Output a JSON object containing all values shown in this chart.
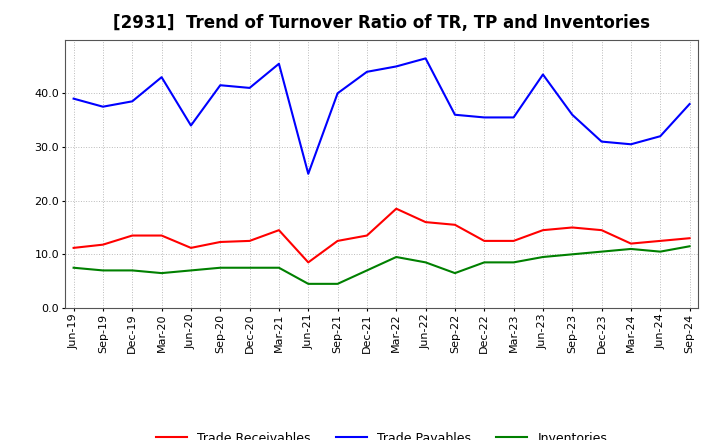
{
  "title": "[2931]  Trend of Turnover Ratio of TR, TP and Inventories",
  "labels": [
    "Jun-19",
    "Sep-19",
    "Dec-19",
    "Mar-20",
    "Jun-20",
    "Sep-20",
    "Dec-20",
    "Mar-21",
    "Jun-21",
    "Sep-21",
    "Dec-21",
    "Mar-22",
    "Jun-22",
    "Sep-22",
    "Dec-22",
    "Mar-23",
    "Jun-23",
    "Sep-23",
    "Dec-23",
    "Mar-24",
    "Jun-24",
    "Sep-24"
  ],
  "trade_receivables": [
    11.2,
    11.8,
    13.5,
    13.5,
    11.2,
    12.3,
    12.5,
    14.5,
    8.5,
    12.5,
    13.5,
    18.5,
    16.0,
    15.5,
    12.5,
    12.5,
    14.5,
    15.0,
    14.5,
    12.0,
    12.5,
    13.0
  ],
  "trade_payables": [
    39.0,
    37.5,
    38.5,
    43.0,
    34.0,
    41.5,
    41.0,
    45.5,
    25.0,
    40.0,
    44.0,
    45.0,
    46.5,
    36.0,
    35.5,
    35.5,
    43.5,
    36.0,
    31.0,
    30.5,
    32.0,
    38.0
  ],
  "inventories": [
    7.5,
    7.0,
    7.0,
    6.5,
    7.0,
    7.5,
    7.5,
    7.5,
    4.5,
    4.5,
    7.0,
    9.5,
    8.5,
    6.5,
    8.5,
    8.5,
    9.5,
    10.0,
    10.5,
    11.0,
    10.5,
    11.5
  ],
  "ylim": [
    0,
    50
  ],
  "yticks": [
    0.0,
    10.0,
    20.0,
    30.0,
    40.0
  ],
  "color_tr": "#ff0000",
  "color_tp": "#0000ff",
  "color_inv": "#008000",
  "background_color": "#ffffff",
  "grid_color": "#bbbbbb",
  "title_fontsize": 12,
  "tick_fontsize": 8,
  "legend_fontsize": 9
}
